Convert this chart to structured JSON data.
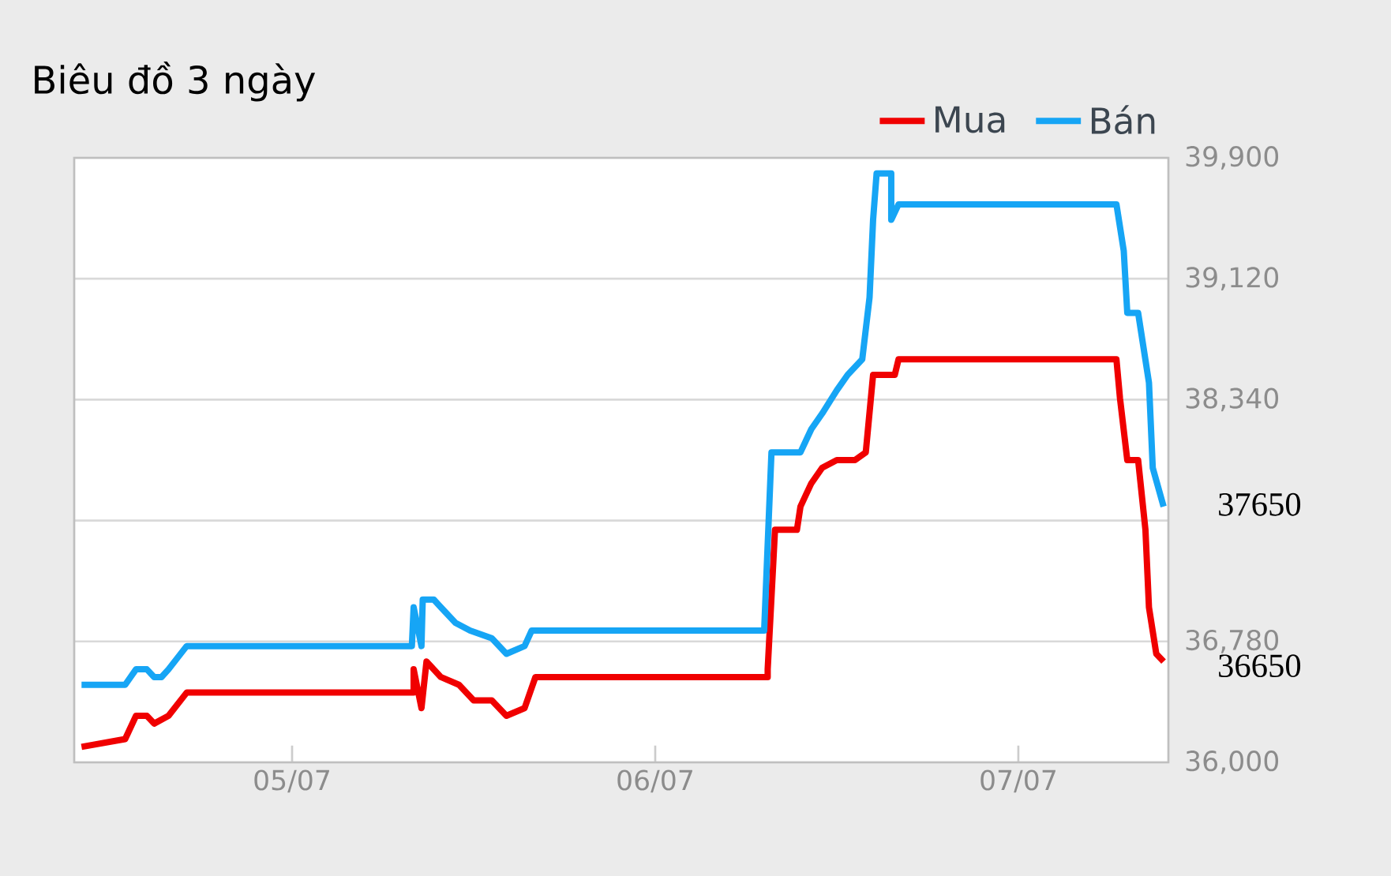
{
  "chart_data": {
    "type": "line",
    "title": "Biêu đồ 3 ngày",
    "xlim": [
      "--07-04T09:36",
      "--07-07T09:55"
    ],
    "xticks": [
      {
        "value": "--07-05",
        "label": "05/07"
      },
      {
        "value": "--07-06",
        "label": "06/07"
      },
      {
        "value": "--07-07",
        "label": "07/07"
      }
    ],
    "ylim": [
      36000,
      39900
    ],
    "yticks": [
      {
        "value": 36000,
        "label": "36,000"
      },
      {
        "value": 36780,
        "label": "36,780"
      },
      {
        "value": 37560,
        "label": null
      },
      {
        "value": 38340,
        "label": "38,340"
      },
      {
        "value": 39120,
        "label": "39,120"
      },
      {
        "value": 39900,
        "label": "39,900"
      }
    ],
    "grid": "y",
    "legend": "top right",
    "marker": "none",
    "line_style": "solid",
    "series": [
      {
        "name": "Mua",
        "color": "#f00000",
        "x": [
          "--07-04T10:05",
          "--07-04T12:58",
          "--07-04T13:41",
          "--07-04T14:24",
          "--07-04T14:53",
          "--07-04T15:50",
          "--07-04T17:02",
          "--07-05T08:02",
          "--07-05T08:02",
          "--07-05T08:33",
          "--07-05T08:53",
          "--07-05T09:50",
          "--07-05T11:02",
          "--07-05T12:00",
          "--07-05T13:12",
          "--07-05T14:10",
          "--07-05T15:22",
          "--07-05T16:05",
          "--07-06T07:26",
          "--07-06T07:26",
          "--07-06T07:55",
          "--07-06T09:22",
          "--07-06T09:36",
          "--07-06T10:19",
          "--07-06T11:02",
          "--07-06T12:00",
          "--07-06T13:12",
          "--07-06T13:55",
          "--07-06T14:24",
          "--07-06T15:50",
          "--07-06T16:05",
          "--07-07T06:29",
          "--07-07T06:43",
          "--07-07T07:12",
          "--07-07T07:55",
          "--07-07T08:24",
          "--07-07T08:38",
          "--07-07T09:07",
          "--07-07T09:36"
        ],
        "values": [
          36100,
          36150,
          36300,
          36300,
          36250,
          36300,
          36450,
          36450,
          36600,
          36350,
          36650,
          36550,
          36500,
          36400,
          36400,
          36300,
          36350,
          36550,
          36550,
          36600,
          37500,
          37500,
          37650,
          37800,
          37900,
          37950,
          37950,
          38000,
          38500,
          38500,
          38600,
          38600,
          38350,
          37950,
          37950,
          37500,
          37000,
          36700,
          36650
        ]
      },
      {
        "name": "Bán",
        "color": "#16a5f5",
        "x": [
          "--07-04T10:05",
          "--07-04T12:58",
          "--07-04T13:41",
          "--07-04T14:24",
          "--07-04T14:53",
          "--07-04T15:22",
          "--07-04T15:50",
          "--07-04T17:02",
          "--07-05T07:55",
          "--07-05T08:02",
          "--07-05T08:33",
          "--07-05T08:38",
          "--07-05T09:07",
          "--07-05T09:22",
          "--07-05T09:50",
          "--07-05T10:48",
          "--07-05T11:46",
          "--07-05T13:12",
          "--07-05T14:10",
          "--07-05T15:22",
          "--07-05T15:50",
          "--07-06T07:12",
          "--07-06T07:12",
          "--07-06T07:41",
          "--07-06T09:36",
          "--07-06T10:19",
          "--07-06T11:02",
          "--07-06T12:00",
          "--07-06T12:43",
          "--07-06T13:41",
          "--07-06T14:10",
          "--07-06T14:24",
          "--07-06T14:38",
          "--07-06T15:36",
          "--07-06T15:36",
          "--07-06T16:05",
          "--07-07T06:29",
          "--07-07T06:58",
          "--07-07T07:12",
          "--07-07T07:55",
          "--07-07T08:38",
          "--07-07T08:53",
          "--07-07T09:36"
        ],
        "values": [
          36500,
          36500,
          36600,
          36600,
          36550,
          36550,
          36600,
          36750,
          36750,
          37000,
          36750,
          37050,
          37050,
          37050,
          37000,
          36900,
          36850,
          36800,
          36700,
          36750,
          36850,
          36850,
          36850,
          38000,
          38000,
          38150,
          38250,
          38400,
          38500,
          38600,
          39000,
          39500,
          39800,
          39800,
          39500,
          39600,
          39600,
          39300,
          38900,
          38900,
          38450,
          37900,
          37650
        ]
      }
    ],
    "annotations": [
      {
        "text": "37650",
        "x": "--07-07T09:36",
        "y": 37650
      },
      {
        "text": "36650",
        "x": "--07-07T09:36",
        "y": 36650
      }
    ]
  }
}
